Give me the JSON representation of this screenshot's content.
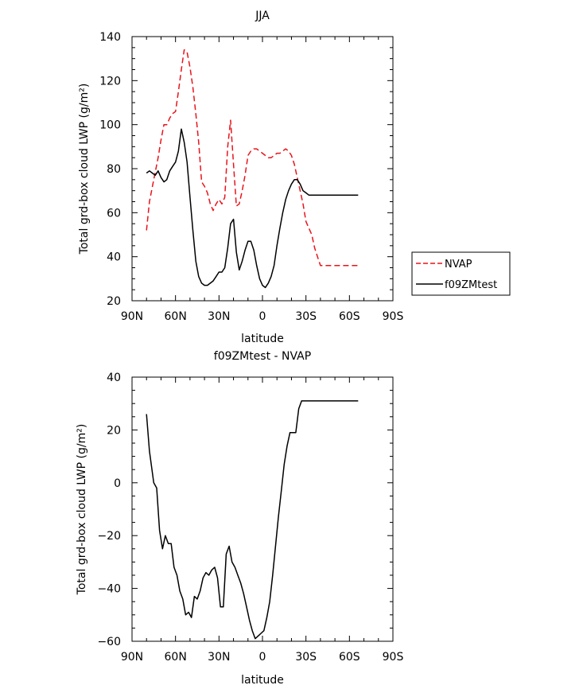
{
  "chart_data": [
    {
      "type": "line",
      "title": "JJA",
      "xlabel": "latitude",
      "ylabel": "Total grd-box cloud LWP (g/m²)",
      "xlim": [
        90,
        -90
      ],
      "ylim": [
        20,
        140
      ],
      "xticks": [
        90,
        60,
        30,
        0,
        -30,
        -60,
        -90
      ],
      "xtick_labels": [
        "90N",
        "60N",
        "30N",
        "0",
        "30S",
        "60S",
        "90S"
      ],
      "yticks": [
        20,
        40,
        60,
        80,
        100,
        120,
        140
      ],
      "ytick_labels": [
        "20",
        "40",
        "60",
        "80",
        "100",
        "120",
        "140"
      ],
      "legend_position": "outside-right",
      "series": [
        {
          "name": "NVAP",
          "color": "#e8141b",
          "dash": "dashed",
          "x": [
            80,
            78,
            75,
            72,
            70,
            68,
            66,
            64,
            62,
            60,
            58,
            56,
            54,
            52,
            50,
            48,
            46,
            44,
            42,
            40,
            38,
            36,
            34,
            32,
            30,
            28,
            26,
            24,
            22,
            20,
            18,
            16,
            14,
            12,
            10,
            8,
            6,
            4,
            2,
            0,
            -2,
            -4,
            -6,
            -8,
            -10,
            -12,
            -14,
            -16,
            -18,
            -20,
            -22,
            -24,
            -26,
            -28,
            -30,
            -32,
            -34,
            -36,
            -38,
            -40,
            -42,
            -44,
            -46,
            -48,
            -50,
            -52,
            -54,
            -56,
            -58,
            -60,
            -62,
            -64,
            -66
          ],
          "y": [
            52,
            65,
            75,
            85,
            93,
            100,
            100,
            103,
            105,
            106,
            115,
            125,
            134,
            133,
            126,
            117,
            105,
            92,
            74,
            72,
            69,
            64,
            61,
            64,
            66,
            64,
            67,
            90,
            102,
            82,
            63,
            64,
            70,
            77,
            86,
            88,
            89,
            89,
            88,
            87,
            86,
            85,
            85,
            86,
            87,
            87,
            88,
            89,
            88,
            86,
            82,
            76,
            70,
            64,
            56,
            53,
            50,
            44,
            40,
            36,
            36,
            36,
            36,
            36,
            36,
            36,
            36,
            36,
            36,
            36,
            36,
            36,
            36
          ]
        },
        {
          "name": "f09ZMtest",
          "color": "#000000",
          "dash": "solid",
          "x": [
            80,
            78,
            76,
            74,
            72,
            70,
            68,
            66,
            64,
            62,
            60,
            58,
            56,
            54,
            52,
            50,
            48,
            46,
            44,
            42,
            40,
            38,
            36,
            34,
            32,
            30,
            28,
            26,
            24,
            22,
            20,
            18,
            16,
            14,
            12,
            10,
            8,
            6,
            4,
            2,
            0,
            -2,
            -4,
            -6,
            -8,
            -10,
            -12,
            -14,
            -16,
            -18,
            -20,
            -22,
            -24,
            -26,
            -28,
            -30,
            -32,
            -34,
            -36,
            -38,
            -40,
            -42,
            -44,
            -46,
            -48,
            -50,
            -52,
            -54,
            -56,
            -58,
            -60,
            -62,
            -64,
            -66
          ],
          "y": [
            78,
            79,
            78,
            77,
            79,
            76,
            74,
            75,
            79,
            81,
            83,
            88,
            98,
            92,
            83,
            67,
            52,
            38,
            31,
            28,
            27,
            27,
            28,
            29,
            31,
            33,
            33,
            35,
            44,
            55,
            57,
            42,
            34,
            38,
            43,
            47,
            47,
            43,
            36,
            30,
            27,
            26,
            28,
            31,
            36,
            45,
            53,
            60,
            66,
            70,
            73,
            75,
            75,
            73,
            70,
            69,
            68,
            68,
            68,
            68,
            68,
            68,
            68,
            68,
            68,
            68,
            68,
            68,
            68,
            68,
            68,
            68,
            68,
            68
          ]
        }
      ]
    },
    {
      "type": "line",
      "title": "f09ZMtest - NVAP",
      "xlabel": "latitude",
      "ylabel": "Total grd-box cloud LWP (g/m²)",
      "xlim": [
        90,
        -90
      ],
      "ylim": [
        -60,
        40
      ],
      "xticks": [
        90,
        60,
        30,
        0,
        -30,
        -60,
        -90
      ],
      "xtick_labels": [
        "90N",
        "60N",
        "30N",
        "0",
        "30S",
        "60S",
        "90S"
      ],
      "yticks": [
        -60,
        -40,
        -20,
        0,
        20,
        40
      ],
      "ytick_labels": [
        "−60",
        "−40",
        "−20",
        "0",
        "20",
        "40"
      ],
      "series": [
        {
          "name": "",
          "color": "#000000",
          "dash": "solid",
          "x": [
            80,
            78,
            75,
            73,
            71,
            69,
            67,
            65,
            63,
            61,
            59,
            57,
            55,
            53,
            51,
            49,
            47,
            45,
            43,
            41,
            39,
            37,
            35,
            33,
            31,
            29,
            27,
            25,
            23,
            21,
            19,
            17,
            15,
            13,
            11,
            9,
            7,
            5,
            3,
            1,
            -1,
            -3,
            -5,
            -7,
            -9,
            -11,
            -13,
            -15,
            -17,
            -19,
            -21,
            -23,
            -25,
            -27,
            -29,
            -31,
            -33,
            -35,
            -37,
            -39,
            -41,
            -43,
            -45,
            -47,
            -49,
            -51,
            -53,
            -55,
            -57,
            -59,
            -61,
            -63,
            -65,
            -66
          ],
          "y": [
            26,
            12,
            0,
            -2,
            -18,
            -25,
            -20,
            -23,
            -23,
            -32,
            -35,
            -41,
            -44,
            -50,
            -49,
            -51,
            -43,
            -44,
            -41,
            -36,
            -34,
            -35,
            -33,
            -32,
            -36,
            -47,
            -47,
            -27,
            -24,
            -30,
            -32,
            -35,
            -38,
            -42,
            -47,
            -52,
            -56,
            -59,
            -58,
            -57,
            -56,
            -51,
            -45,
            -35,
            -24,
            -13,
            -3,
            7,
            14,
            19,
            19,
            19,
            28,
            31,
            31,
            31,
            31,
            31,
            31,
            31,
            31,
            31,
            31,
            31,
            31,
            31,
            31,
            31,
            31,
            31,
            31,
            31,
            31,
            31
          ]
        }
      ]
    }
  ]
}
